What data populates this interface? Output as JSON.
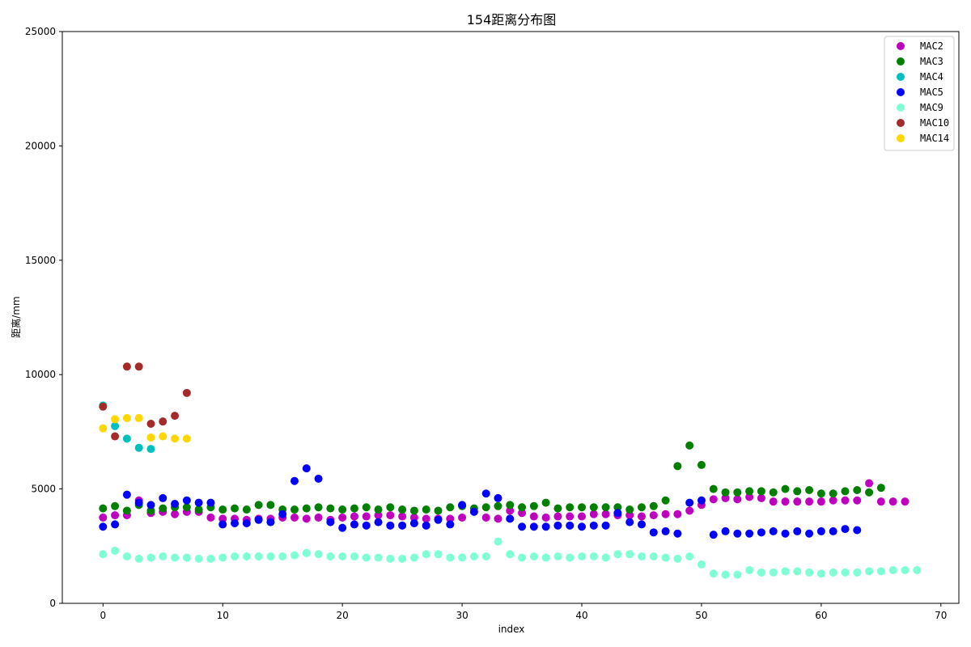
{
  "chart_data": {
    "type": "scatter",
    "title": "154距离分布图",
    "xlabel": "index",
    "ylabel": "距离/mm",
    "xlim": [
      -3.4,
      71.5
    ],
    "ylim": [
      0,
      25000
    ],
    "xticks": [
      0,
      10,
      20,
      30,
      40,
      50,
      60,
      70
    ],
    "yticks": [
      0,
      5000,
      10000,
      15000,
      20000,
      25000
    ],
    "grid": false,
    "legend_position": "top-right",
    "series": [
      {
        "name": "MAC2",
        "color": "#bf00bf",
        "y": [
          3750,
          3850,
          3850,
          4500,
          3950,
          4000,
          3900,
          4000,
          4000,
          3750,
          3700,
          3700,
          3650,
          3700,
          3700,
          3750,
          3750,
          3700,
          3750,
          3650,
          3750,
          3800,
          3800,
          3850,
          3850,
          3800,
          3750,
          3700,
          3700,
          3700,
          3750,
          null,
          3750,
          3700,
          4050,
          3950,
          3800,
          3750,
          3800,
          3800,
          3800,
          3900,
          3900,
          3850,
          3850,
          3800,
          3850,
          3900,
          3900,
          4050,
          4300,
          4550,
          4600,
          4550,
          4650,
          4600,
          4450,
          4450,
          4450,
          4450,
          4450,
          4500,
          4500,
          4500,
          5250,
          4450,
          4450,
          4450
        ]
      },
      {
        "name": "MAC3",
        "color": "#007f00",
        "y": [
          4150,
          4250,
          4050,
          4300,
          4050,
          4150,
          4200,
          4200,
          4100,
          4200,
          4100,
          4150,
          4100,
          4300,
          4300,
          4100,
          4100,
          4150,
          4200,
          4150,
          4100,
          4150,
          4200,
          4100,
          4200,
          4100,
          4050,
          4100,
          4050,
          4200,
          4250,
          4150,
          4200,
          4250,
          4300,
          4200,
          4250,
          4400,
          4150,
          4200,
          4200,
          4200,
          4200,
          4200,
          4100,
          4200,
          4250,
          4500,
          6000,
          6900,
          6050,
          5000,
          4850,
          4850,
          4900,
          4900,
          4850,
          5000,
          4900,
          4950,
          4800,
          4800,
          4900,
          4950,
          4850,
          5050
        ]
      },
      {
        "name": "MAC4",
        "color": "#00bfbf",
        "y": [
          8650,
          7750,
          7200,
          6800,
          6750
        ]
      },
      {
        "name": "MAC5",
        "color": "#0000ff",
        "y": [
          3350,
          3450,
          4750,
          4400,
          4300,
          4600,
          4350,
          4500,
          4400,
          4400,
          3450,
          3500,
          3500,
          3650,
          3550,
          3900,
          5350,
          5900,
          5450,
          3550,
          3300,
          3450,
          3400,
          3550,
          3400,
          3400,
          3500,
          3400,
          3650,
          3450,
          4300,
          4000,
          4800,
          4600,
          3700,
          3350,
          3350,
          3350,
          3400,
          3400,
          3350,
          3400,
          3400,
          3950,
          3550,
          3450,
          3100,
          3150,
          3050,
          4400,
          4500,
          3000,
          3150,
          3050,
          3050,
          3100,
          3150,
          3050,
          3150,
          3050,
          3150,
          3150,
          3250,
          3200
        ]
      },
      {
        "name": "MAC9",
        "color": "#7fffd4",
        "y": [
          2150,
          2300,
          2050,
          1950,
          2000,
          2050,
          2000,
          2000,
          1950,
          1950,
          2000,
          2050,
          2050,
          2050,
          2050,
          2050,
          2100,
          2200,
          2150,
          2050,
          2050,
          2050,
          2000,
          2000,
          1950,
          1950,
          2000,
          2150,
          2150,
          2000,
          2000,
          2050,
          2050,
          2700,
          2150,
          2000,
          2050,
          2000,
          2050,
          2000,
          2050,
          2050,
          2000,
          2150,
          2150,
          2050,
          2050,
          2000,
          1950,
          2050,
          1700,
          1300,
          1250,
          1250,
          1450,
          1350,
          1350,
          1400,
          1400,
          1350,
          1300,
          1350,
          1350,
          1350,
          1400,
          1400,
          1450,
          1450,
          1450
        ]
      },
      {
        "name": "MAC10",
        "color": "#a52a2a",
        "y": [
          8600,
          7300,
          10350,
          10350,
          7850,
          7950,
          8200,
          9200
        ]
      },
      {
        "name": "MAC14",
        "color": "#ffd700",
        "y": [
          7650,
          8050,
          8100,
          8100,
          7250,
          7300,
          7200,
          7200
        ]
      }
    ]
  }
}
